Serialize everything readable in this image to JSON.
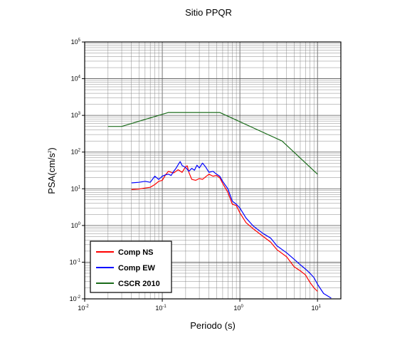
{
  "chart_data": {
    "type": "line",
    "title": "Sitio PPQR",
    "xlabel": "Periodo (s)",
    "ylabel_base": "PSA(cm/s",
    "ylabel_exp": "2",
    "ylabel_close": ")",
    "x_scale": "log",
    "y_scale": "log",
    "xlim": [
      0.01,
      20
    ],
    "ylim": [
      0.01,
      100000
    ],
    "grid": true,
    "legend_position": "bottom-left",
    "x_ticks": [
      {
        "base": "10",
        "exp": "-2",
        "value": 0.01
      },
      {
        "base": "10",
        "exp": "-1",
        "value": 0.1
      },
      {
        "base": "10",
        "exp": "0",
        "value": 1
      },
      {
        "base": "10",
        "exp": "1",
        "value": 10
      }
    ],
    "y_ticks": [
      {
        "base": "10",
        "exp": "-2",
        "value": 0.01
      },
      {
        "base": "10",
        "exp": "-1",
        "value": 0.1
      },
      {
        "base": "10",
        "exp": "0",
        "value": 1
      },
      {
        "base": "10",
        "exp": "1",
        "value": 10
      },
      {
        "base": "10",
        "exp": "2",
        "value": 100
      },
      {
        "base": "10",
        "exp": "3",
        "value": 1000
      },
      {
        "base": "10",
        "exp": "4",
        "value": 10000
      },
      {
        "base": "10",
        "exp": "5",
        "value": 100000
      }
    ],
    "series": [
      {
        "name": "Comp NS",
        "color": "#ff0000",
        "points": [
          [
            0.04,
            9.5
          ],
          [
            0.05,
            9.8
          ],
          [
            0.06,
            10.5
          ],
          [
            0.07,
            11
          ],
          [
            0.08,
            13
          ],
          [
            0.09,
            16
          ],
          [
            0.1,
            17
          ],
          [
            0.11,
            24
          ],
          [
            0.12,
            30
          ],
          [
            0.13,
            28
          ],
          [
            0.14,
            27
          ],
          [
            0.15,
            30
          ],
          [
            0.16,
            33
          ],
          [
            0.18,
            28
          ],
          [
            0.2,
            40
          ],
          [
            0.21,
            42
          ],
          [
            0.22,
            28
          ],
          [
            0.24,
            18
          ],
          [
            0.27,
            17
          ],
          [
            0.3,
            19
          ],
          [
            0.33,
            18
          ],
          [
            0.36,
            21
          ],
          [
            0.4,
            25
          ],
          [
            0.45,
            22
          ],
          [
            0.5,
            23
          ],
          [
            0.55,
            20
          ],
          [
            0.6,
            14
          ],
          [
            0.7,
            8
          ],
          [
            0.8,
            3.8
          ],
          [
            0.9,
            3.5
          ],
          [
            1.0,
            2.2
          ],
          [
            1.2,
            1.2
          ],
          [
            1.5,
            0.8
          ],
          [
            2.0,
            0.5
          ],
          [
            2.5,
            0.35
          ],
          [
            3.0,
            0.22
          ],
          [
            4.0,
            0.14
          ],
          [
            5.0,
            0.075
          ],
          [
            6.0,
            0.058
          ],
          [
            7.0,
            0.045
          ],
          [
            8.0,
            0.028
          ],
          [
            9.0,
            0.02
          ],
          [
            10.0,
            0.016
          ]
        ]
      },
      {
        "name": "Comp EW",
        "color": "#0000ff",
        "points": [
          [
            0.04,
            14.5
          ],
          [
            0.05,
            15
          ],
          [
            0.06,
            16
          ],
          [
            0.07,
            15
          ],
          [
            0.08,
            22
          ],
          [
            0.09,
            18
          ],
          [
            0.1,
            22
          ],
          [
            0.11,
            24
          ],
          [
            0.12,
            25
          ],
          [
            0.13,
            23
          ],
          [
            0.14,
            30
          ],
          [
            0.15,
            36
          ],
          [
            0.16,
            45
          ],
          [
            0.17,
            55
          ],
          [
            0.18,
            43
          ],
          [
            0.2,
            38
          ],
          [
            0.22,
            30
          ],
          [
            0.24,
            36
          ],
          [
            0.26,
            32
          ],
          [
            0.28,
            44
          ],
          [
            0.3,
            37
          ],
          [
            0.33,
            50
          ],
          [
            0.36,
            40
          ],
          [
            0.4,
            28
          ],
          [
            0.45,
            30
          ],
          [
            0.5,
            25
          ],
          [
            0.55,
            22
          ],
          [
            0.6,
            16
          ],
          [
            0.7,
            10
          ],
          [
            0.8,
            4.6
          ],
          [
            0.9,
            3.8
          ],
          [
            1.0,
            3.0
          ],
          [
            1.2,
            1.6
          ],
          [
            1.5,
            0.95
          ],
          [
            2.0,
            0.6
          ],
          [
            2.5,
            0.45
          ],
          [
            3.0,
            0.28
          ],
          [
            4.0,
            0.18
          ],
          [
            5.0,
            0.12
          ],
          [
            6.0,
            0.085
          ],
          [
            7.0,
            0.065
          ],
          [
            8.0,
            0.05
          ],
          [
            9.0,
            0.038
          ],
          [
            10.0,
            0.025
          ],
          [
            12.0,
            0.014
          ],
          [
            15.0,
            0.0105
          ]
        ]
      },
      {
        "name": "CSCR 2010",
        "color": "#1a6b1a",
        "points": [
          [
            0.02,
            500
          ],
          [
            0.03,
            500
          ],
          [
            0.12,
            1200
          ],
          [
            0.55,
            1200
          ],
          [
            3.5,
            200
          ],
          [
            10.0,
            25
          ]
        ]
      }
    ]
  }
}
